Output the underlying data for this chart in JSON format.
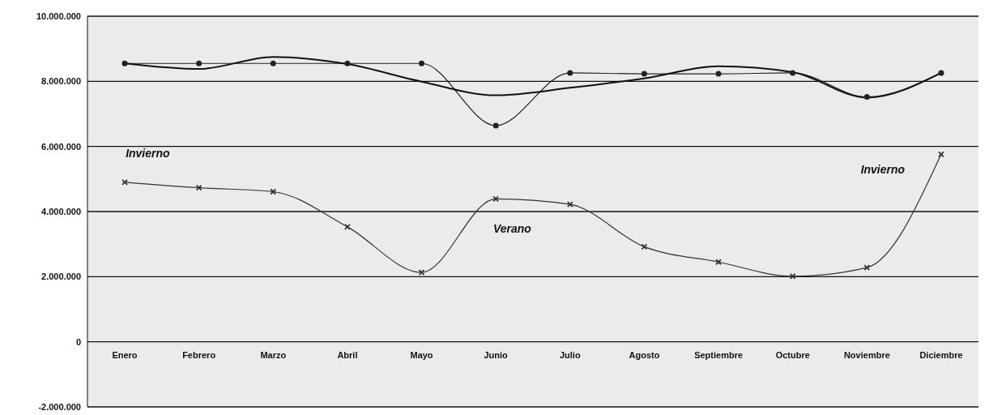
{
  "chart_data": {
    "type": "line",
    "categories": [
      "Enero",
      "Febrero",
      "Marzo",
      "Abril",
      "Mayo",
      "Junio",
      "Julio",
      "Agosto",
      "Septiembre",
      "Octubre",
      "Noviembre",
      "Diciembre"
    ],
    "series": [
      {
        "color": "#222222",
        "marker": "circle",
        "values": [
          8550000,
          8550000,
          8550000,
          8550000,
          8550000,
          6640000,
          8260000,
          8230000,
          8230000,
          8260000,
          7520000,
          8260000
        ]
      },
      {
        "color": "#111111",
        "marker": "none",
        "values": [
          8550000,
          8380000,
          8750000,
          8530000,
          7990000,
          7570000,
          7800000,
          8090000,
          8460000,
          8280000,
          7500000,
          8260000
        ]
      },
      {
        "color": "#333333",
        "marker": "cross",
        "values": [
          4900000,
          4730000,
          4610000,
          3530000,
          2130000,
          4390000,
          4220000,
          2920000,
          2450000,
          2010000,
          2280000,
          5760000
        ]
      }
    ],
    "ylim": [
      -2000000,
      10000000
    ],
    "yticks": [
      {
        "value": -2000000,
        "label": "-2.000.000"
      },
      {
        "value": 0,
        "label": "0"
      },
      {
        "value": 2000000,
        "label": "2.000.000"
      },
      {
        "value": 4000000,
        "label": "4.000.000"
      },
      {
        "value": 6000000,
        "label": "6.000.000"
      },
      {
        "value": 8000000,
        "label": "8.000.000"
      },
      {
        "value": 10000000,
        "label": "10.000.000"
      }
    ],
    "grid": "y",
    "line_style": "solid",
    "annotations": [
      "Invierno",
      "Verano",
      "Invierno"
    ]
  }
}
